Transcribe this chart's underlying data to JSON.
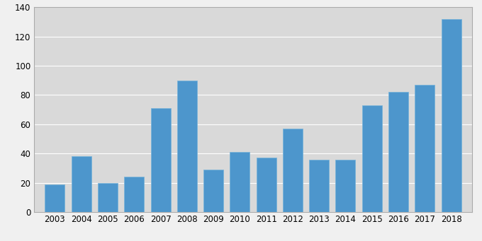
{
  "years": [
    2003,
    2004,
    2005,
    2006,
    2007,
    2008,
    2009,
    2010,
    2011,
    2012,
    2013,
    2014,
    2015,
    2016,
    2017,
    2018
  ],
  "values": [
    19,
    38,
    20,
    24,
    71,
    90,
    29,
    41,
    37,
    57,
    36,
    36,
    73,
    82,
    87,
    132
  ],
  "bar_color": "#4d96cc",
  "bar_edge_color": "#7ab4d8",
  "axes_background": "#d9d9d9",
  "figure_background": "#f0f0f0",
  "ylim": [
    0,
    140
  ],
  "yticks": [
    0,
    20,
    40,
    60,
    80,
    100,
    120,
    140
  ],
  "tick_fontsize": 8.5,
  "bar_width": 0.75,
  "spine_color": "#aaaaaa",
  "grid_color": "#ffffff"
}
